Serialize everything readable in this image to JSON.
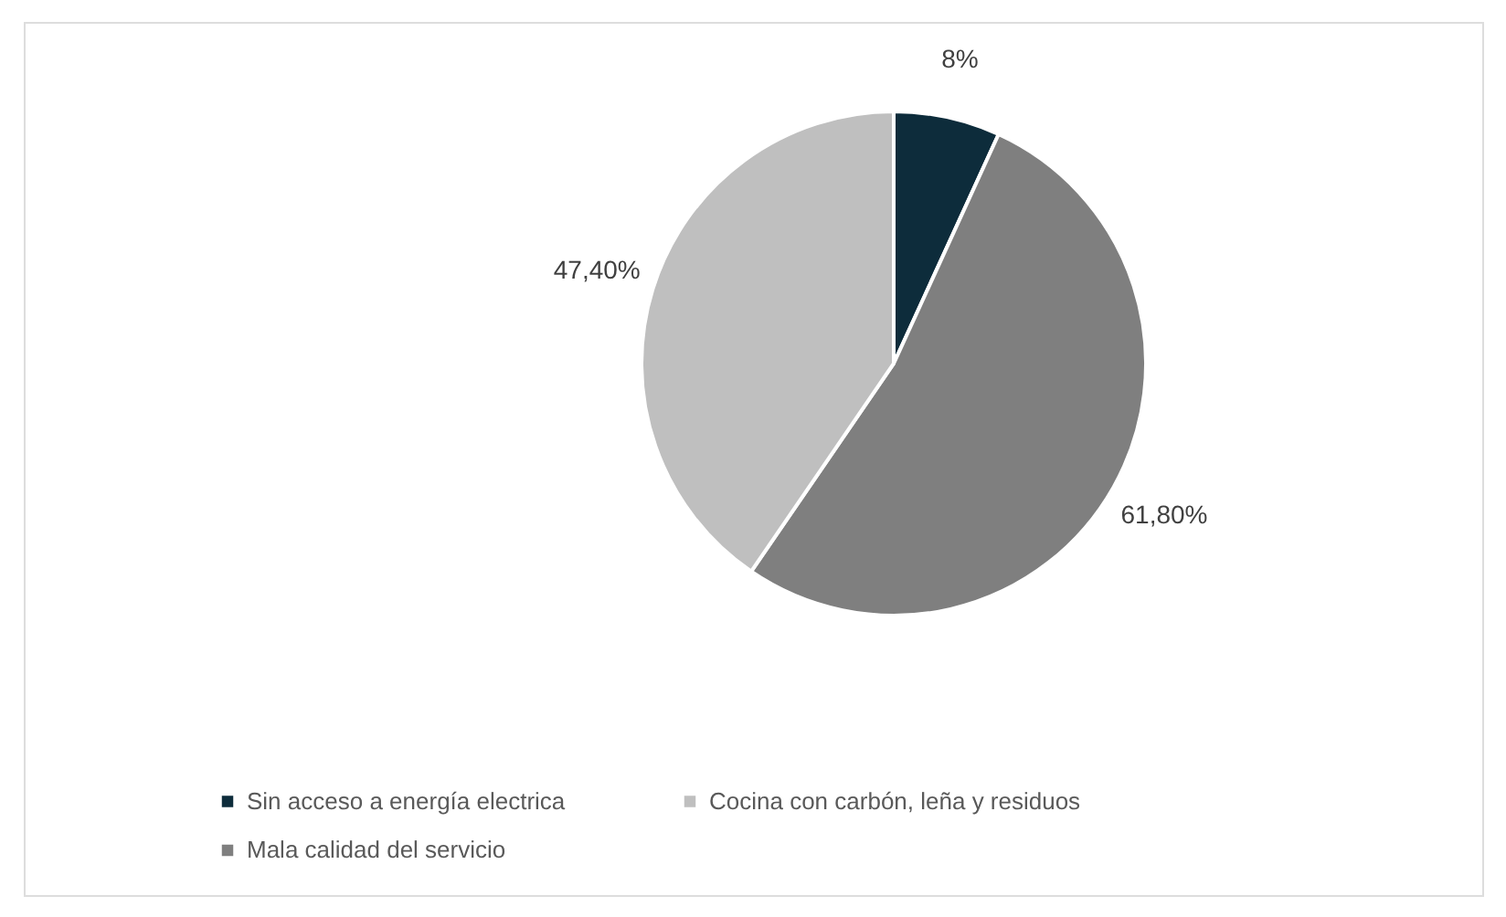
{
  "chart_data": {
    "type": "pie",
    "categories": [
      "Sin acceso a energía electrica",
      "Mala calidad del servicio",
      "Cocina con carbón, leña y residuos"
    ],
    "values": [
      8,
      61.8,
      47.4
    ],
    "value_labels": [
      "8%",
      "61,80%",
      "47,40%"
    ],
    "colors": [
      "#0d2c3b",
      "#7f7f7f",
      "#bfbfbf"
    ],
    "legend": "bottom left"
  }
}
